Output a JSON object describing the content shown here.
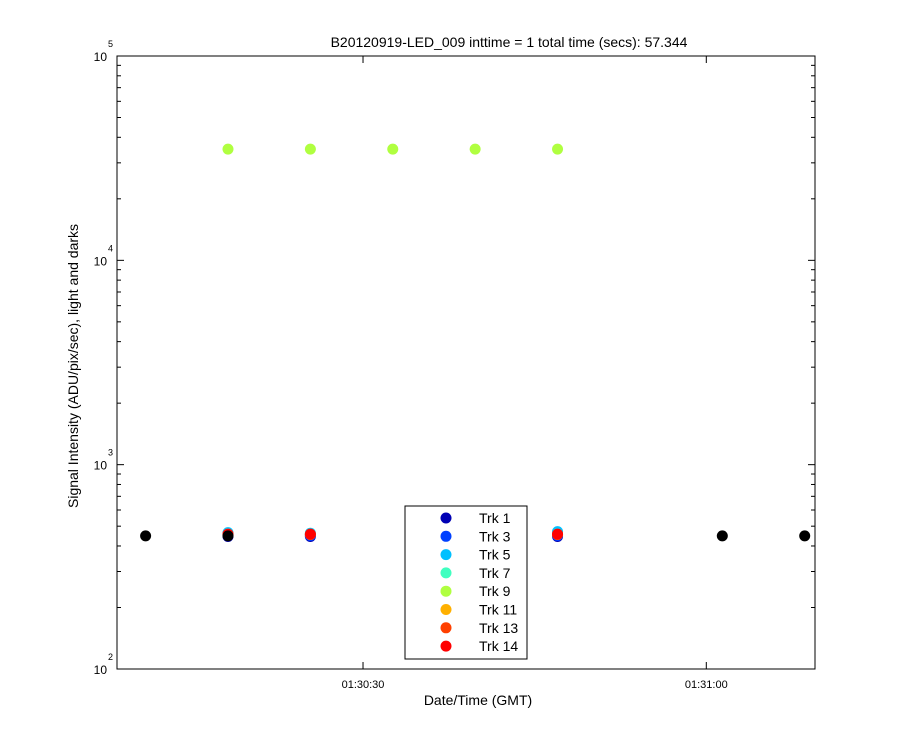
{
  "chart_data": {
    "type": "scatter",
    "title": "B20120919-LED_009 inttime = 1 total time (secs): 57.344",
    "xlabel": "Date/Time (GMT)",
    "ylabel": "Signal Intensity (ADU/pix/sec), light and darks",
    "yscale": "log",
    "ylim": [
      100,
      100000
    ],
    "y_ticks": [
      {
        "base": "10",
        "exp": "2",
        "value": 100
      },
      {
        "base": "10",
        "exp": "3",
        "value": 1000
      },
      {
        "base": "10",
        "exp": "4",
        "value": 10000
      },
      {
        "base": "10",
        "exp": "5",
        "value": 100000
      }
    ],
    "xlim": [
      "01:30:08.5",
      "01:31:09.5"
    ],
    "x_ticks": [
      {
        "label": "01:30:30",
        "value": "01:30:30"
      },
      {
        "label": "01:31:00",
        "value": "01:31:00"
      }
    ],
    "grid": false,
    "legend_position": "bottom-center",
    "series": [
      {
        "name": "Trk 1",
        "color": "#0000b4",
        "x": [
          "01:30:18.2",
          "01:30:25.4",
          "01:30:39.8",
          "01:30:47.0"
        ],
        "y": [
          445,
          445,
          445,
          445
        ]
      },
      {
        "name": "Trk 3",
        "color": "#0040ff",
        "x": [
          "01:30:18.2",
          "01:30:25.4",
          "01:30:39.8",
          "01:30:47.0"
        ],
        "y": [
          450,
          450,
          450,
          450
        ]
      },
      {
        "name": "Trk 5",
        "color": "#00c0ff",
        "x": [
          "01:30:18.2",
          "01:30:25.4",
          "01:30:39.8",
          "01:30:47.0"
        ],
        "y": [
          465,
          462,
          470,
          470
        ]
      },
      {
        "name": "Trk 7",
        "color": "#40ffc0",
        "x": [
          "01:30:18.2",
          "01:30:25.4",
          "01:30:39.8",
          "01:30:47.0"
        ],
        "y": [
          458,
          458,
          458,
          458
        ]
      },
      {
        "name": "Trk 9",
        "color": "#b0ff40",
        "x": [
          "01:30:18.2",
          "01:30:25.4",
          "01:30:32.6",
          "01:30:39.8",
          "01:30:47.0"
        ],
        "y": [
          35000,
          35000,
          35000,
          35000,
          35000
        ]
      },
      {
        "name": "Trk 11",
        "color": "#ffb000",
        "x": [
          "01:30:18.2",
          "01:30:25.4",
          "01:30:39.8",
          "01:30:47.0"
        ],
        "y": [
          455,
          455,
          455,
          455
        ]
      },
      {
        "name": "Trk 13",
        "color": "#ff4000",
        "x": [
          "01:30:18.2",
          "01:30:25.4",
          "01:30:39.8",
          "01:30:47.0"
        ],
        "y": [
          455,
          455,
          455,
          455
        ]
      },
      {
        "name": "Trk 14",
        "color": "#ff0000",
        "x": [
          "01:30:18.2",
          "01:30:25.4",
          "01:30:39.8",
          "01:30:47.0"
        ],
        "y": [
          457,
          457,
          457,
          457
        ]
      },
      {
        "color": "#000000",
        "x": [
          "01:30:11.0",
          "01:30:18.2",
          "01:31:01.4",
          "01:31:08.6"
        ],
        "y": [
          448,
          448,
          448,
          448
        ]
      }
    ]
  }
}
